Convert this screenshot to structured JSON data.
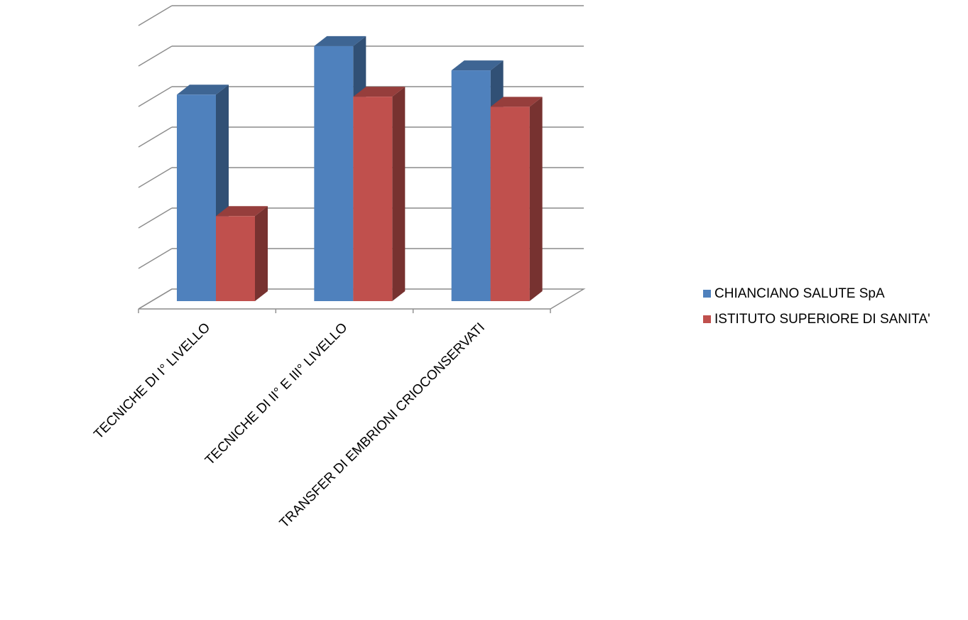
{
  "chart_data": {
    "type": "bar",
    "style": "3d-clustered-column",
    "categories": [
      "TECNICHE DI I° LIVELLO",
      "TECNICHE DI II° E III° LIVELLO",
      "TRANSFER DI EMBRIONI CRIOCONSERVATI"
    ],
    "series": [
      {
        "name": "CHIANCIANO SALUTE SpA",
        "color": "#4F81BD",
        "values": [
          5.1,
          6.3,
          5.7
        ]
      },
      {
        "name": "ISTITUTO SUPERIORE DI SANITA'",
        "color": "#C0504D",
        "values": [
          2.1,
          5.05,
          4.8
        ]
      }
    ],
    "ylim": [
      0,
      7
    ],
    "ytick_labels_visible": false,
    "grid": true,
    "legend_position": "right",
    "title": "",
    "xlabel": "",
    "ylabel": ""
  }
}
